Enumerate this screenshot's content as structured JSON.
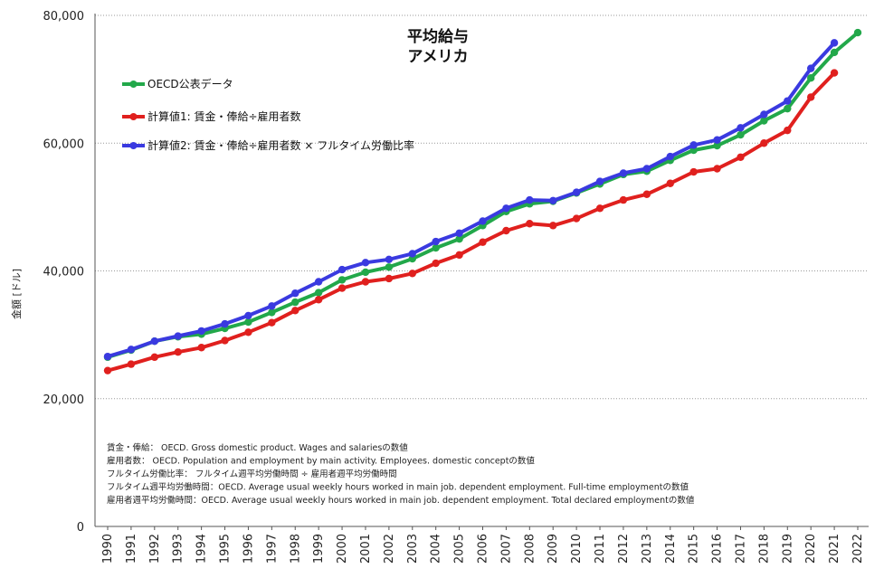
{
  "chart_data": {
    "type": "line",
    "title": "平均給与",
    "subtitle": "アメリカ",
    "ylabel": "金額 [ドル]",
    "xlabel": "",
    "ylim": [
      0,
      80000
    ],
    "yticks": [
      0,
      20000,
      40000,
      60000,
      80000
    ],
    "ytick_labels": [
      "0",
      "20,000",
      "40,000",
      "60,000",
      "80,000"
    ],
    "grid": "horizontal dotted",
    "legend_position": "top-left",
    "x": [
      "1990",
      "1991",
      "1992",
      "1993",
      "1994",
      "1995",
      "1996",
      "1997",
      "1998",
      "1999",
      "2000",
      "2001",
      "2002",
      "2003",
      "2004",
      "2005",
      "2006",
      "2007",
      "2008",
      "2009",
      "2010",
      "2011",
      "2012",
      "2013",
      "2014",
      "2015",
      "2016",
      "2017",
      "2018",
      "2019",
      "2020",
      "2021",
      "2022"
    ],
    "series": [
      {
        "name": "OECD公表データ",
        "color": "#22a84a",
        "values": [
          26500,
          27600,
          29000,
          29700,
          30100,
          31000,
          32000,
          33500,
          35100,
          36600,
          38600,
          39800,
          40600,
          41900,
          43600,
          45000,
          47100,
          49300,
          50500,
          50900,
          52200,
          53600,
          55100,
          55600,
          57300,
          58900,
          59600,
          61300,
          63500,
          65400,
          70200,
          74200,
          77300
        ]
      },
      {
        "name": "計算値1: 賃金・俸給÷雇用者数",
        "color": "#e0201e",
        "values": [
          24400,
          25400,
          26500,
          27300,
          28000,
          29100,
          30400,
          31900,
          33800,
          35500,
          37300,
          38300,
          38800,
          39600,
          41200,
          42500,
          44500,
          46300,
          47400,
          47100,
          48200,
          49800,
          51100,
          52000,
          53700,
          55500,
          56000,
          57800,
          60000,
          62000,
          67200,
          71000,
          null
        ]
      },
      {
        "name": "計算値2: 賃金・俸給÷雇用者数 × フルタイム労働比率",
        "color": "#3a3ae0",
        "values": [
          26600,
          27700,
          29000,
          29800,
          30600,
          31700,
          33000,
          34500,
          36500,
          38300,
          40200,
          41300,
          41800,
          42700,
          44600,
          45900,
          47800,
          49800,
          51100,
          51000,
          52300,
          54000,
          55300,
          56000,
          57900,
          59700,
          60500,
          62400,
          64500,
          66600,
          71700,
          75700,
          null
        ]
      }
    ],
    "notes": [
      "賃金・俸給： OECD. Gross domestic product. Wages and salariesの数値",
      "雇用者数： OECD. Population and employment by main activity. Employees. domestic conceptの数値",
      "フルタイム労働比率： フルタイム週平均労働時間 ÷ 雇用者週平均労働時間",
      "フルタイム週平均労働時間：OECD. Average usual weekly  hours worked in main job. dependent employment. Full-time employmentの数値",
      "雇用者週平均労働時間：OECD. Average usual weekly hours worked in main job. dependent employment. Total declared employmentの数値"
    ]
  }
}
